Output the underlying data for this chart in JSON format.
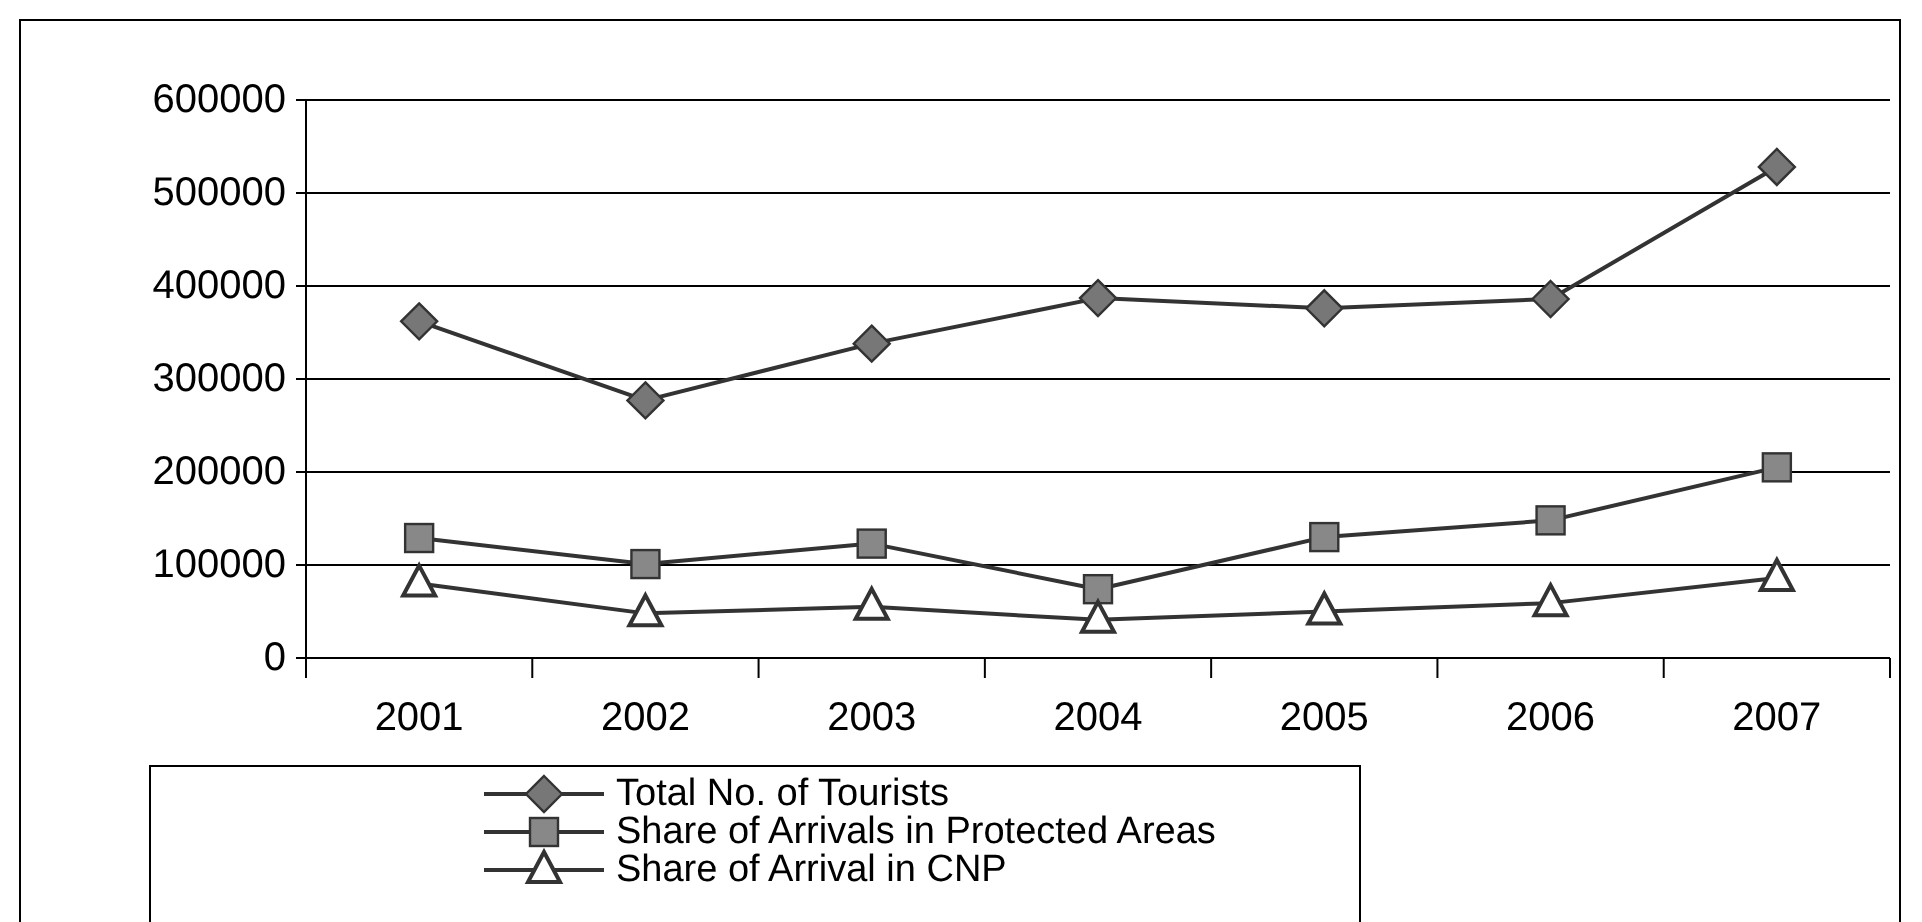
{
  "chart_data": {
    "type": "line",
    "categories": [
      "2001",
      "2002",
      "2003",
      "2004",
      "2005",
      "2006",
      "2007"
    ],
    "series": [
      {
        "name": "Total No. of Tourists",
        "color": "#333333",
        "marker": "diamond",
        "values": [
          362000,
          277000,
          338000,
          387000,
          376000,
          386000,
          528000
        ]
      },
      {
        "name": "Share of Arrivals in Protected Areas",
        "color": "#333333",
        "marker": "square",
        "values": [
          129000,
          101000,
          123000,
          74000,
          130000,
          148000,
          205000
        ]
      },
      {
        "name": "Share of Arrival in CNP",
        "color": "#333333",
        "marker": "triangle",
        "values": [
          80000,
          48000,
          55000,
          41000,
          50000,
          59000,
          86000
        ]
      }
    ],
    "ylim": [
      0,
      600000
    ],
    "yticks": [
      0,
      100000,
      200000,
      300000,
      400000,
      500000,
      600000
    ],
    "grid": "y",
    "legend": "bottom"
  }
}
